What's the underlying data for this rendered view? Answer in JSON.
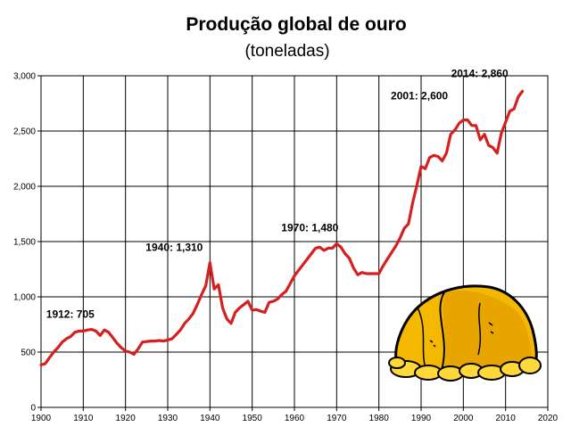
{
  "chart_data": {
    "type": "line",
    "title": "Produção global de ouro",
    "subtitle": "(toneladas)",
    "xlabel": "",
    "ylabel": "",
    "xlim": [
      1900,
      2020
    ],
    "ylim": [
      0,
      3000
    ],
    "grid": true,
    "line_color": "#d42020",
    "x_ticks": [
      "1900",
      "1910",
      "1920",
      "1930",
      "1940",
      "1950",
      "1960",
      "1970",
      "1980",
      "1990",
      "2000",
      "2010",
      "2020"
    ],
    "y_ticks": [
      "0",
      "500",
      "1,000",
      "1,500",
      "2,000",
      "2,500",
      "3,000"
    ],
    "series": [
      {
        "x": [
          1900,
          1901,
          1902,
          1903,
          1904,
          1905,
          1906,
          1907,
          1908,
          1909,
          1910,
          1911,
          1912,
          1913,
          1914,
          1915,
          1916,
          1917,
          1918,
          1919,
          1920,
          1921,
          1922,
          1923,
          1924,
          1925,
          1926,
          1927,
          1928,
          1929,
          1930,
          1931,
          1932,
          1933,
          1934,
          1935,
          1936,
          1937,
          1938,
          1939,
          1940,
          1941,
          1942,
          1943,
          1944,
          1945,
          1946,
          1947,
          1948,
          1949,
          1950,
          1951,
          1952,
          1953,
          1954,
          1955,
          1956,
          1957,
          1958,
          1959,
          1960,
          1961,
          1962,
          1963,
          1964,
          1965,
          1966,
          1967,
          1968,
          1969,
          1970,
          1971,
          1972,
          1973,
          1974,
          1975,
          1976,
          1977,
          1978,
          1979,
          1980,
          1981,
          1982,
          1983,
          1984,
          1985,
          1986,
          1987,
          1988,
          1989,
          1990,
          1991,
          1992,
          1993,
          1994,
          1995,
          1996,
          1997,
          1998,
          1999,
          2000,
          2001,
          2002,
          2003,
          2004,
          2005,
          2006,
          2007,
          2008,
          2009,
          2010,
          2011,
          2012,
          2013,
          2014
        ],
        "y": [
          385,
          395,
          450,
          500,
          540,
          590,
          620,
          640,
          680,
          690,
          690,
          700,
          705,
          690,
          650,
          700,
          680,
          630,
          580,
          540,
          510,
          500,
          480,
          530,
          590,
          595,
          600,
          600,
          605,
          600,
          610,
          620,
          660,
          700,
          760,
          800,
          850,
          930,
          1020,
          1100,
          1310,
          1070,
          1110,
          900,
          800,
          760,
          860,
          900,
          930,
          960,
          880,
          885,
          870,
          860,
          950,
          960,
          980,
          1020,
          1050,
          1120,
          1190,
          1240,
          1290,
          1340,
          1390,
          1440,
          1450,
          1420,
          1440,
          1440,
          1480,
          1450,
          1390,
          1350,
          1260,
          1200,
          1220,
          1210,
          1210,
          1210,
          1210,
          1280,
          1340,
          1400,
          1460,
          1530,
          1620,
          1660,
          1850,
          2010,
          2180,
          2160,
          2260,
          2280,
          2270,
          2230,
          2300,
          2470,
          2510,
          2570,
          2600,
          2600,
          2550,
          2550,
          2420,
          2470,
          2370,
          2350,
          2300,
          2480,
          2580,
          2680,
          2700,
          2810,
          2860
        ]
      }
    ],
    "annotations": [
      {
        "label": "1912:  705",
        "x": 1912,
        "y": 705
      },
      {
        "label": "1940:  1,310",
        "x": 1940,
        "y": 1310
      },
      {
        "label": "1970:  1,480",
        "x": 1970,
        "y": 1480
      },
      {
        "label": "2001:  2,600",
        "x": 2001,
        "y": 2600
      },
      {
        "label": "2014:  2,860",
        "x": 2014,
        "y": 2860
      }
    ]
  }
}
